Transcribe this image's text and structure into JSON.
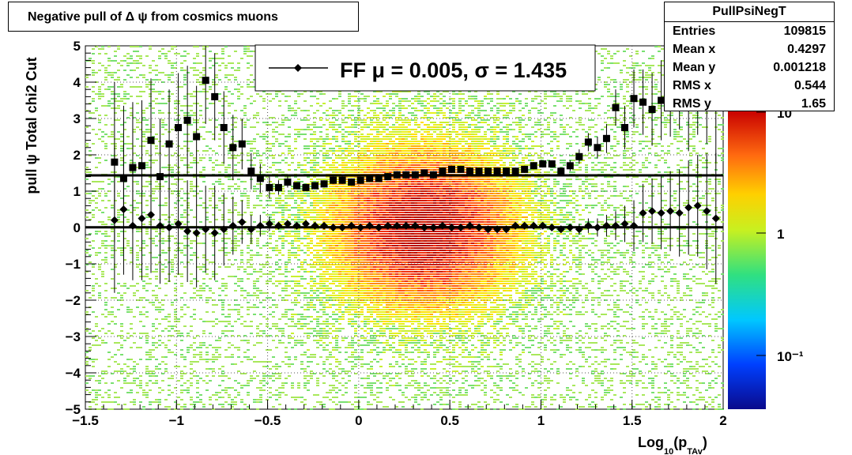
{
  "title": "Negative pull of Δ ψ from cosmics muons",
  "stats": {
    "name": "PullPsiNegT",
    "rows": [
      {
        "label": "Entries",
        "value": "109815"
      },
      {
        "label": "Mean x",
        "value": "0.4297"
      },
      {
        "label": "Mean y",
        "value": "0.001218"
      },
      {
        "label": "RMS x",
        "value": "0.544"
      },
      {
        "label": "RMS y",
        "value": "1.65"
      }
    ]
  },
  "legend": {
    "label": "FF μ =  0.005, σ =   1.435"
  },
  "colors": {
    "mean_marker": "#000000",
    "sigma_marker": "#000000",
    "fit_line": "#000000"
  },
  "chart_data": {
    "type": "heatmap",
    "xlabel_main": "Log",
    "xlabel_sub1": "10",
    "xlabel_mid": "(p",
    "xlabel_sub2": "TAv",
    "xlabel_end": ")",
    "ylabel": "pull ψ    Total chi2 Cut",
    "xlim": [
      -1.5,
      2
    ],
    "ylim": [
      -5,
      5
    ],
    "x_ticks": [
      "−1.5",
      "−1",
      "−0.5",
      "0",
      "0.5",
      "1",
      "1.5",
      "2"
    ],
    "y_ticks": [
      "−5",
      "−4",
      "−3",
      "−2",
      "−1",
      "0",
      "1",
      "2",
      "3",
      "4",
      "5"
    ],
    "z_scale": "log",
    "z_ticks": [
      "10⁻¹",
      "1",
      "10"
    ],
    "grid": true,
    "horizontal_lines": [
      0.005,
      1.435
    ],
    "series": [
      {
        "marker": "diamond",
        "x": [
          -1.34,
          -1.29,
          -1.24,
          -1.19,
          -1.14,
          -1.09,
          -1.04,
          -0.99,
          -0.94,
          -0.89,
          -0.84,
          -0.79,
          -0.74,
          -0.69,
          -0.64,
          -0.59,
          -0.54,
          -0.49,
          -0.44,
          -0.39,
          -0.34,
          -0.29,
          -0.24,
          -0.19,
          -0.14,
          -0.09,
          -0.04,
          0.01,
          0.06,
          0.11,
          0.16,
          0.21,
          0.26,
          0.31,
          0.36,
          0.41,
          0.46,
          0.51,
          0.56,
          0.61,
          0.66,
          0.71,
          0.76,
          0.81,
          0.86,
          0.91,
          0.96,
          1.01,
          1.06,
          1.11,
          1.16,
          1.21,
          1.26,
          1.31,
          1.36,
          1.41,
          1.46,
          1.51,
          1.56,
          1.61,
          1.66,
          1.71,
          1.76,
          1.81,
          1.86,
          1.91,
          1.96
        ],
        "y": [
          0.2,
          0.5,
          0.05,
          0.25,
          0.35,
          0.05,
          0.0,
          0.1,
          -0.1,
          -0.15,
          -0.05,
          -0.15,
          -0.05,
          0.05,
          0.15,
          -0.05,
          0.05,
          0.1,
          0.05,
          0.1,
          0.05,
          0.1,
          0.05,
          0.05,
          0.0,
          0.0,
          0.05,
          0.0,
          0.05,
          0.0,
          0.05,
          0.05,
          0.05,
          0.05,
          0.0,
          0.0,
          0.05,
          0.0,
          0.0,
          0.05,
          0.0,
          -0.05,
          -0.05,
          -0.05,
          0.05,
          0.05,
          0.05,
          0.05,
          0.0,
          -0.05,
          0.0,
          -0.05,
          0.05,
          0.0,
          0.05,
          0.05,
          0.1,
          0.05,
          0.4,
          0.45,
          0.4,
          0.45,
          0.4,
          0.55,
          0.6,
          0.45,
          0.25
        ],
        "err": [
          2.0,
          1.8,
          1.5,
          1.7,
          1.6,
          1.6,
          1.5,
          1.4,
          1.4,
          1.5,
          1.2,
          1.3,
          1.0,
          0.8,
          0.6,
          0.4,
          0.3,
          0.2,
          0.1,
          0.1,
          0.05,
          0.05,
          0.05,
          0.05,
          0.05,
          0.05,
          0.05,
          0.05,
          0.05,
          0.05,
          0.05,
          0.05,
          0.05,
          0.05,
          0.05,
          0.05,
          0.05,
          0.05,
          0.05,
          0.05,
          0.05,
          0.05,
          0.05,
          0.05,
          0.05,
          0.05,
          0.05,
          0.1,
          0.1,
          0.1,
          0.1,
          0.15,
          0.2,
          0.25,
          0.3,
          0.4,
          0.5,
          0.7,
          0.8,
          0.9,
          1.0,
          1.1,
          1.2,
          1.3,
          1.4,
          1.6,
          1.8
        ]
      },
      {
        "marker": "square",
        "x": [
          -1.34,
          -1.29,
          -1.24,
          -1.19,
          -1.14,
          -1.09,
          -1.04,
          -0.99,
          -0.94,
          -0.89,
          -0.84,
          -0.79,
          -0.74,
          -0.69,
          -0.64,
          -0.59,
          -0.54,
          -0.49,
          -0.44,
          -0.39,
          -0.34,
          -0.29,
          -0.24,
          -0.19,
          -0.14,
          -0.09,
          -0.04,
          0.01,
          0.06,
          0.11,
          0.16,
          0.21,
          0.26,
          0.31,
          0.36,
          0.41,
          0.46,
          0.51,
          0.56,
          0.61,
          0.66,
          0.71,
          0.76,
          0.81,
          0.86,
          0.91,
          0.96,
          1.01,
          1.06,
          1.11,
          1.16,
          1.21,
          1.26,
          1.31,
          1.36,
          1.41,
          1.46,
          1.51,
          1.56,
          1.61,
          1.66,
          1.71,
          1.76,
          1.81,
          1.86,
          1.91,
          1.96
        ],
        "y": [
          1.8,
          1.35,
          1.65,
          1.7,
          2.4,
          1.4,
          2.3,
          2.75,
          2.95,
          2.5,
          4.05,
          3.6,
          2.75,
          2.2,
          2.3,
          1.55,
          1.35,
          1.1,
          1.1,
          1.25,
          1.15,
          1.1,
          1.15,
          1.2,
          1.3,
          1.3,
          1.25,
          1.3,
          1.35,
          1.35,
          1.4,
          1.45,
          1.45,
          1.45,
          1.5,
          1.45,
          1.55,
          1.6,
          1.6,
          1.55,
          1.55,
          1.55,
          1.55,
          1.55,
          1.55,
          1.6,
          1.7,
          1.75,
          1.75,
          1.55,
          1.7,
          1.95,
          2.35,
          2.2,
          2.45,
          3.3,
          2.75,
          3.55,
          3.45,
          3.25,
          3.5,
          3.7,
          4.0,
          3.5,
          4.05,
          3.9,
          3.6
        ],
        "err": [
          2.2,
          2.0,
          1.8,
          1.8,
          1.7,
          1.6,
          1.5,
          1.5,
          1.5,
          1.4,
          1.2,
          1.2,
          1.0,
          0.9,
          0.7,
          0.5,
          0.4,
          0.3,
          0.2,
          0.15,
          0.1,
          0.1,
          0.1,
          0.1,
          0.1,
          0.1,
          0.1,
          0.1,
          0.1,
          0.1,
          0.1,
          0.1,
          0.1,
          0.1,
          0.1,
          0.1,
          0.1,
          0.1,
          0.1,
          0.1,
          0.1,
          0.1,
          0.1,
          0.1,
          0.1,
          0.1,
          0.1,
          0.1,
          0.1,
          0.1,
          0.15,
          0.2,
          0.25,
          0.3,
          0.4,
          0.5,
          0.6,
          0.8,
          0.9,
          1.0,
          1.1,
          1.2,
          1.3,
          1.4,
          1.5,
          1.6,
          1.8
        ]
      }
    ]
  }
}
